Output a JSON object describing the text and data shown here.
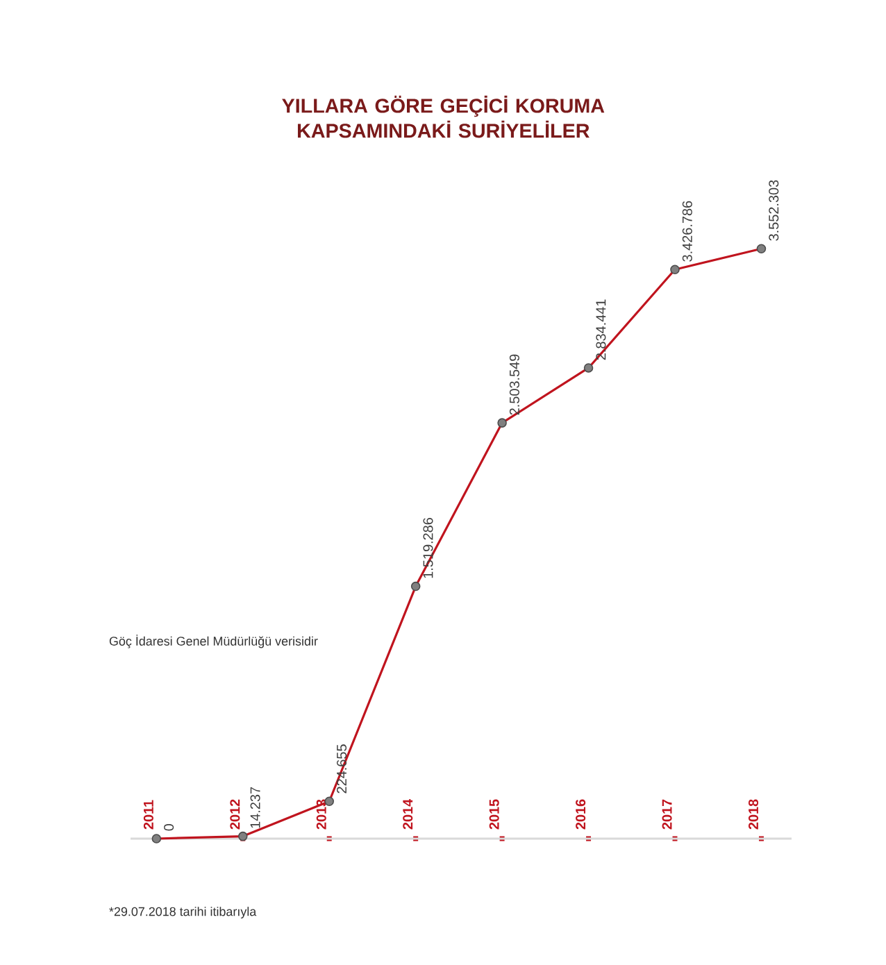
{
  "chart_data": {
    "type": "line",
    "title": "YILLARA GÖRE GEÇİCİ KORUMA KAPSAMINDAKİ SURİYELİLER",
    "categories": [
      "2011",
      "2012",
      "2013",
      "2014",
      "2015",
      "2016",
      "2017",
      "2018"
    ],
    "values": [
      0,
      14237,
      224655,
      1519286,
      2503549,
      2834441,
      3426786,
      3552303
    ],
    "value_labels": [
      "0",
      "14.237",
      "224.655",
      "1.519.286",
      "2.503.549",
      "2.834.441",
      "3.426.786",
      "3.552.303"
    ],
    "color": "#c0141e",
    "marker": "circle",
    "annotations": [
      "Göç İdaresi Genel Müdürlüğü verisidir",
      "*29.07.2018 tarihi itibarıyla"
    ]
  }
}
